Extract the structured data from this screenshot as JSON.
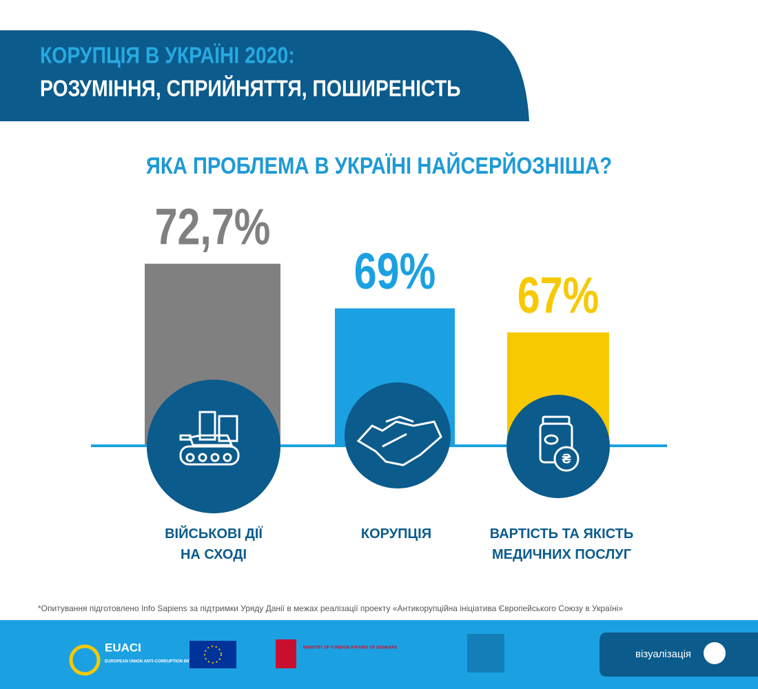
{
  "header": {
    "title": "КОРУПЦІЯ В УКРАЇНІ 2020:",
    "subtitle": "РОЗУМІННЯ, СПРИЙНЯТТЯ, ПОШИРЕНІСТЬ"
  },
  "chart_data": {
    "type": "bar",
    "title": "ЯКА ПРОБЛЕМА В УКРАЇНІ НАЙСЕРЙОЗНІША?",
    "categories": [
      "ВІЙСЬКОВІ ДІЇ\nНА СХОДІ",
      "КОРУПЦІЯ",
      "ВАРТІСТЬ ТА ЯКІСТЬ\nМЕДИЧНИХ ПОСЛУГ"
    ],
    "values": [
      72.7,
      69,
      67
    ],
    "value_labels": [
      "72,7%",
      "69%",
      "67%"
    ],
    "colors": [
      "#808080",
      "#1ba1e2",
      "#f7c900"
    ]
  },
  "footnote": "*Опитування підготовлено Info Sapiens за підтримки Уряду Данії в межах реалізації проекту «Антикорупційна ініціатива Європейського Союзу в Україні»",
  "footer": {
    "euaci": "EUACI",
    "euaci_full": "EUROPEAN UNION ANTI-CORRUPTION INITIATIVE",
    "denmark": "MINISTRY OF FOREIGN AFFAIRS OF DENMARK",
    "visualization": "візуалізація"
  }
}
